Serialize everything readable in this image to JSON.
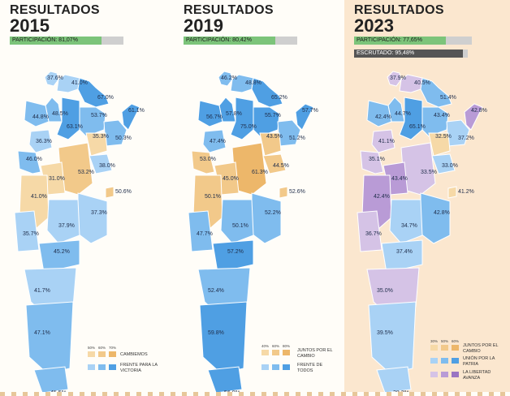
{
  "panels": [
    {
      "results_label": "RESULTADOS",
      "year": "2015",
      "participation": {
        "label": "PARTICIPACIÓN: 81,07%",
        "value": 81.07,
        "color": "#7cc47a"
      },
      "provinces": [
        "37.6%",
        "41.0%",
        "67.0%",
        "61.1%",
        "48.5%",
        "53.7%",
        "44.8%",
        "63.1%",
        "50.3%",
        "36.3%",
        "35.3%",
        "46.0%",
        "38.0%",
        "53.2%",
        "31.0%",
        "41.0%",
        "50.6%",
        "37.3%",
        "37.9%",
        "35.7%",
        "45.2%",
        "41.7%",
        "47.1%",
        "45.5%"
      ],
      "legend": {
        "percents": [
          "50%",
          "60%",
          "70%"
        ],
        "entries": [
          {
            "label": "CAMBIEMOS",
            "colors": [
              "#f6d9a7",
              "#f2c98a",
              "#edb76a"
            ]
          },
          {
            "label": "FRENTE PARA LA VICTORIA",
            "colors": [
              "#a9d2f5",
              "#7fbcee",
              "#4f9fe3"
            ]
          }
        ]
      }
    },
    {
      "results_label": "RESULTADOS",
      "year": "2019",
      "participation": {
        "label": "PARTICIPACIÓN: 80,42%",
        "value": 80.42,
        "color": "#7cc47a"
      },
      "provinces": [
        "46.2%",
        "48.8%",
        "65.2%",
        "57.7%",
        "57.8%",
        "55.7%",
        "56.7%",
        "75.0%",
        "51.2%",
        "47.4%",
        "43.5%",
        "53.0%",
        "44.5%",
        "61.3%",
        "45.0%",
        "50.1%",
        "52.6%",
        "52.2%",
        "50.1%",
        "47.7%",
        "57.2%",
        "52.4%",
        "59.8%",
        "56.9%"
      ],
      "legend": {
        "percents": [
          "40%",
          "60%",
          "80%"
        ],
        "entries": [
          {
            "label": "JUNTOS POR EL CAMBIO",
            "colors": [
              "#f6d9a7",
              "#f2c98a",
              "#edb76a"
            ]
          },
          {
            "label": "FRENTE DE TODOS",
            "colors": [
              "#a9d2f5",
              "#7fbcee",
              "#4f9fe3"
            ]
          }
        ]
      }
    },
    {
      "results_label": "RESULTADOS",
      "year": "2023",
      "participation": {
        "label": "PARTICIPACIÓN: 77,65%",
        "value": 77.65,
        "color": "#7cc47a"
      },
      "scrutiny": {
        "label": "ESCRUTADO: 95,48%",
        "value": 95.48,
        "color": "#555555"
      },
      "provinces": [
        "37.9%",
        "40.5%",
        "51.4%",
        "42.8%",
        "44.7%",
        "43.4%",
        "42.4%",
        "65.1%",
        "37.2%",
        "41.1%",
        "32.5%",
        "35.1%",
        "33.0%",
        "33.5%",
        "43.4%",
        "42.4%",
        "41.2%",
        "42.8%",
        "34.7%",
        "36.7%",
        "37.4%",
        "35.0%",
        "39.5%",
        "38.2%"
      ],
      "legend": {
        "percents": [
          "30%",
          "50%",
          "60%"
        ],
        "entries": [
          {
            "label": "JUNTOS POR EL CAMBIO",
            "colors": [
              "#f6d9a7",
              "#f2c98a",
              "#edb76a"
            ]
          },
          {
            "label": "UNIÓN POR LA PATRIA",
            "colors": [
              "#a9d2f5",
              "#7fbcee",
              "#4f9fe3"
            ]
          },
          {
            "label": "LA LIBERTAD AVANZA",
            "colors": [
              "#d5c3e6",
              "#b99bd6",
              "#9a74c2"
            ]
          }
        ]
      }
    }
  ]
}
